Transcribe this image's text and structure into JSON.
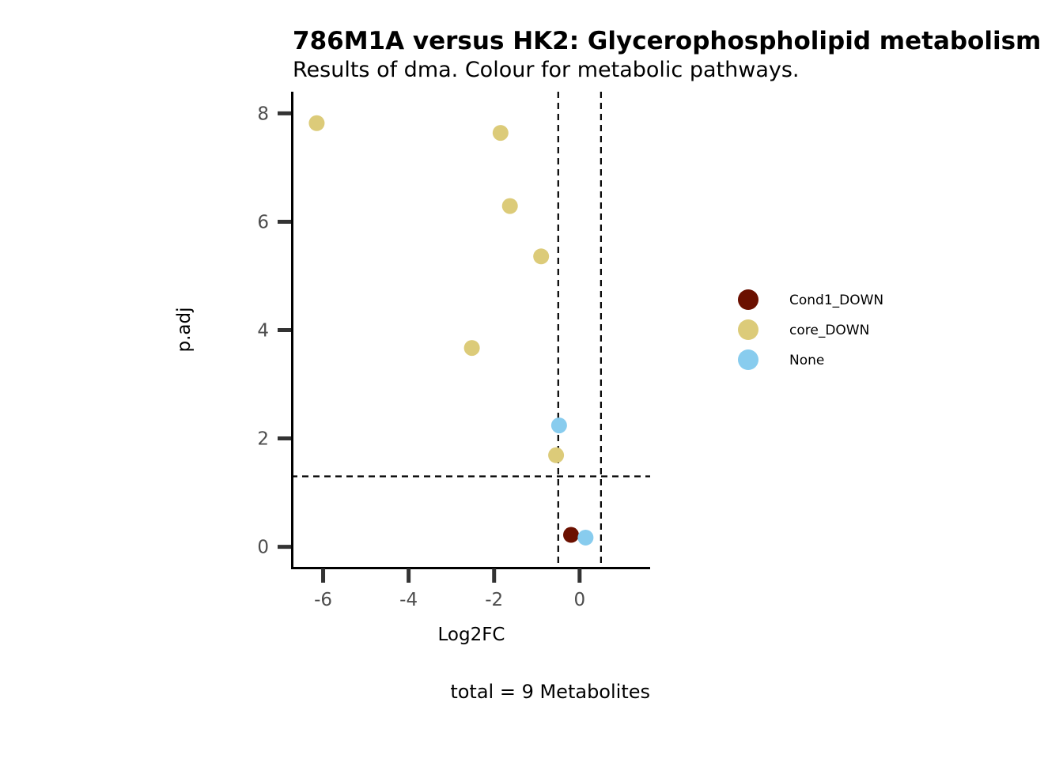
{
  "chart_data": {
    "type": "scatter",
    "title": "786M1A versus HK2: Glycerophospholipid metabolism",
    "subtitle": "Results of dma. Colour for metabolic pathways.",
    "xlabel": "Log2FC",
    "ylabel": "p.adj",
    "caption": "total = 9 Metabolites",
    "xlim": [
      -6.75,
      1.65
    ],
    "ylim": [
      -0.4,
      8.4
    ],
    "x_ticks": [
      -6,
      -4,
      -2,
      0
    ],
    "x_tick_labels": [
      "-6",
      "-4",
      "-2",
      "0"
    ],
    "y_ticks": [
      0,
      2,
      4,
      6,
      8
    ],
    "y_tick_labels": [
      "0",
      "2",
      "4",
      "6",
      "8"
    ],
    "thresholds": {
      "vlines": [
        -0.5,
        0.5
      ],
      "hline": 1.3
    },
    "grid": false,
    "legend_position": "right",
    "series": [
      {
        "name": "Cond1_DOWN",
        "color": "#6b1000",
        "points": [
          [
            -0.2,
            0.22
          ]
        ]
      },
      {
        "name": "core_DOWN",
        "color": "#dccb79",
        "points": [
          [
            -6.15,
            7.82
          ],
          [
            -1.85,
            7.64
          ],
          [
            -1.63,
            6.29
          ],
          [
            -0.9,
            5.36
          ],
          [
            -2.52,
            3.67
          ],
          [
            -0.55,
            1.69
          ]
        ]
      },
      {
        "name": "None",
        "color": "#88ccee",
        "points": [
          [
            -0.48,
            2.24
          ],
          [
            0.14,
            0.17
          ]
        ]
      }
    ]
  }
}
